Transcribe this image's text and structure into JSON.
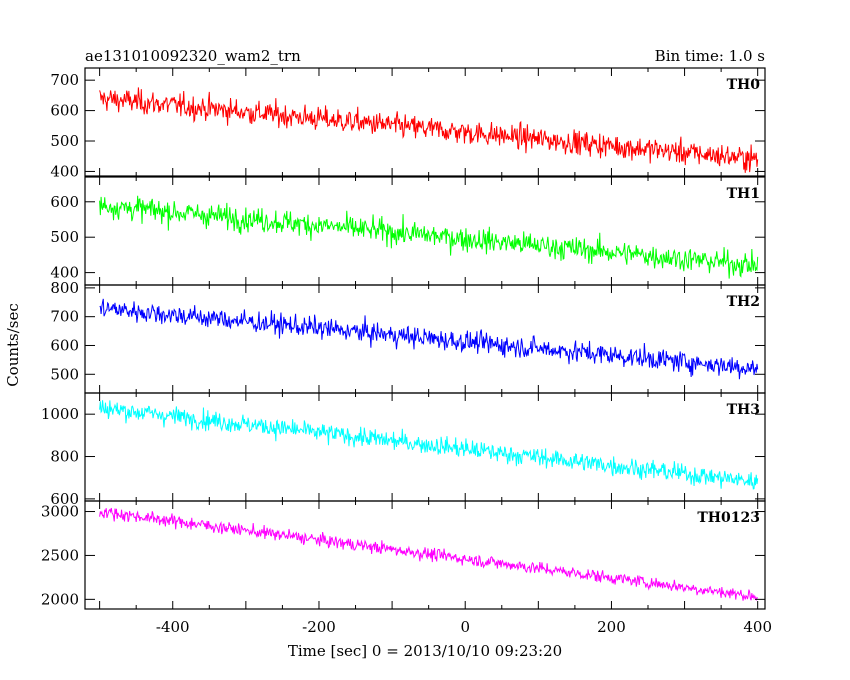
{
  "chart_data": {
    "type": "line",
    "title": "ae131010092320_wam2_trn",
    "subtitle": "Bin time: 1.0 s",
    "xlabel": "Time [sec] 0 = 2013/10/10 09:23:20",
    "ylabel": "Counts/sec",
    "xlim": [
      -520,
      410
    ],
    "x_ticks": [
      -400,
      -200,
      0,
      200,
      400
    ],
    "x_range": [
      -500,
      400
    ],
    "grid": false,
    "panels": [
      {
        "name": "TH0",
        "color": "#ff0000",
        "ylim": [
          385,
          740
        ],
        "y_ticks": [
          400,
          500,
          600,
          700
        ],
        "start": 640,
        "end": 440,
        "noise": 28
      },
      {
        "name": "TH1",
        "color": "#00ff00",
        "ylim": [
          365,
          670
        ],
        "y_ticks": [
          400,
          500,
          600
        ],
        "start": 590,
        "end": 420,
        "noise": 24
      },
      {
        "name": "TH2",
        "color": "#0000ff",
        "ylim": [
          435,
          810
        ],
        "y_ticks": [
          500,
          600,
          700,
          800
        ],
        "start": 730,
        "end": 520,
        "noise": 26
      },
      {
        "name": "TH3",
        "color": "#00ffff",
        "ylim": [
          590,
          1100
        ],
        "y_ticks": [
          600,
          800,
          1000
        ],
        "start": 1030,
        "end": 680,
        "noise": 32
      },
      {
        "name": "TH0123",
        "color": "#ff00ff",
        "ylim": [
          1890,
          3120
        ],
        "y_ticks": [
          2000,
          2500,
          3000
        ],
        "start": 3000,
        "end": 2030,
        "noise": 50
      }
    ]
  }
}
